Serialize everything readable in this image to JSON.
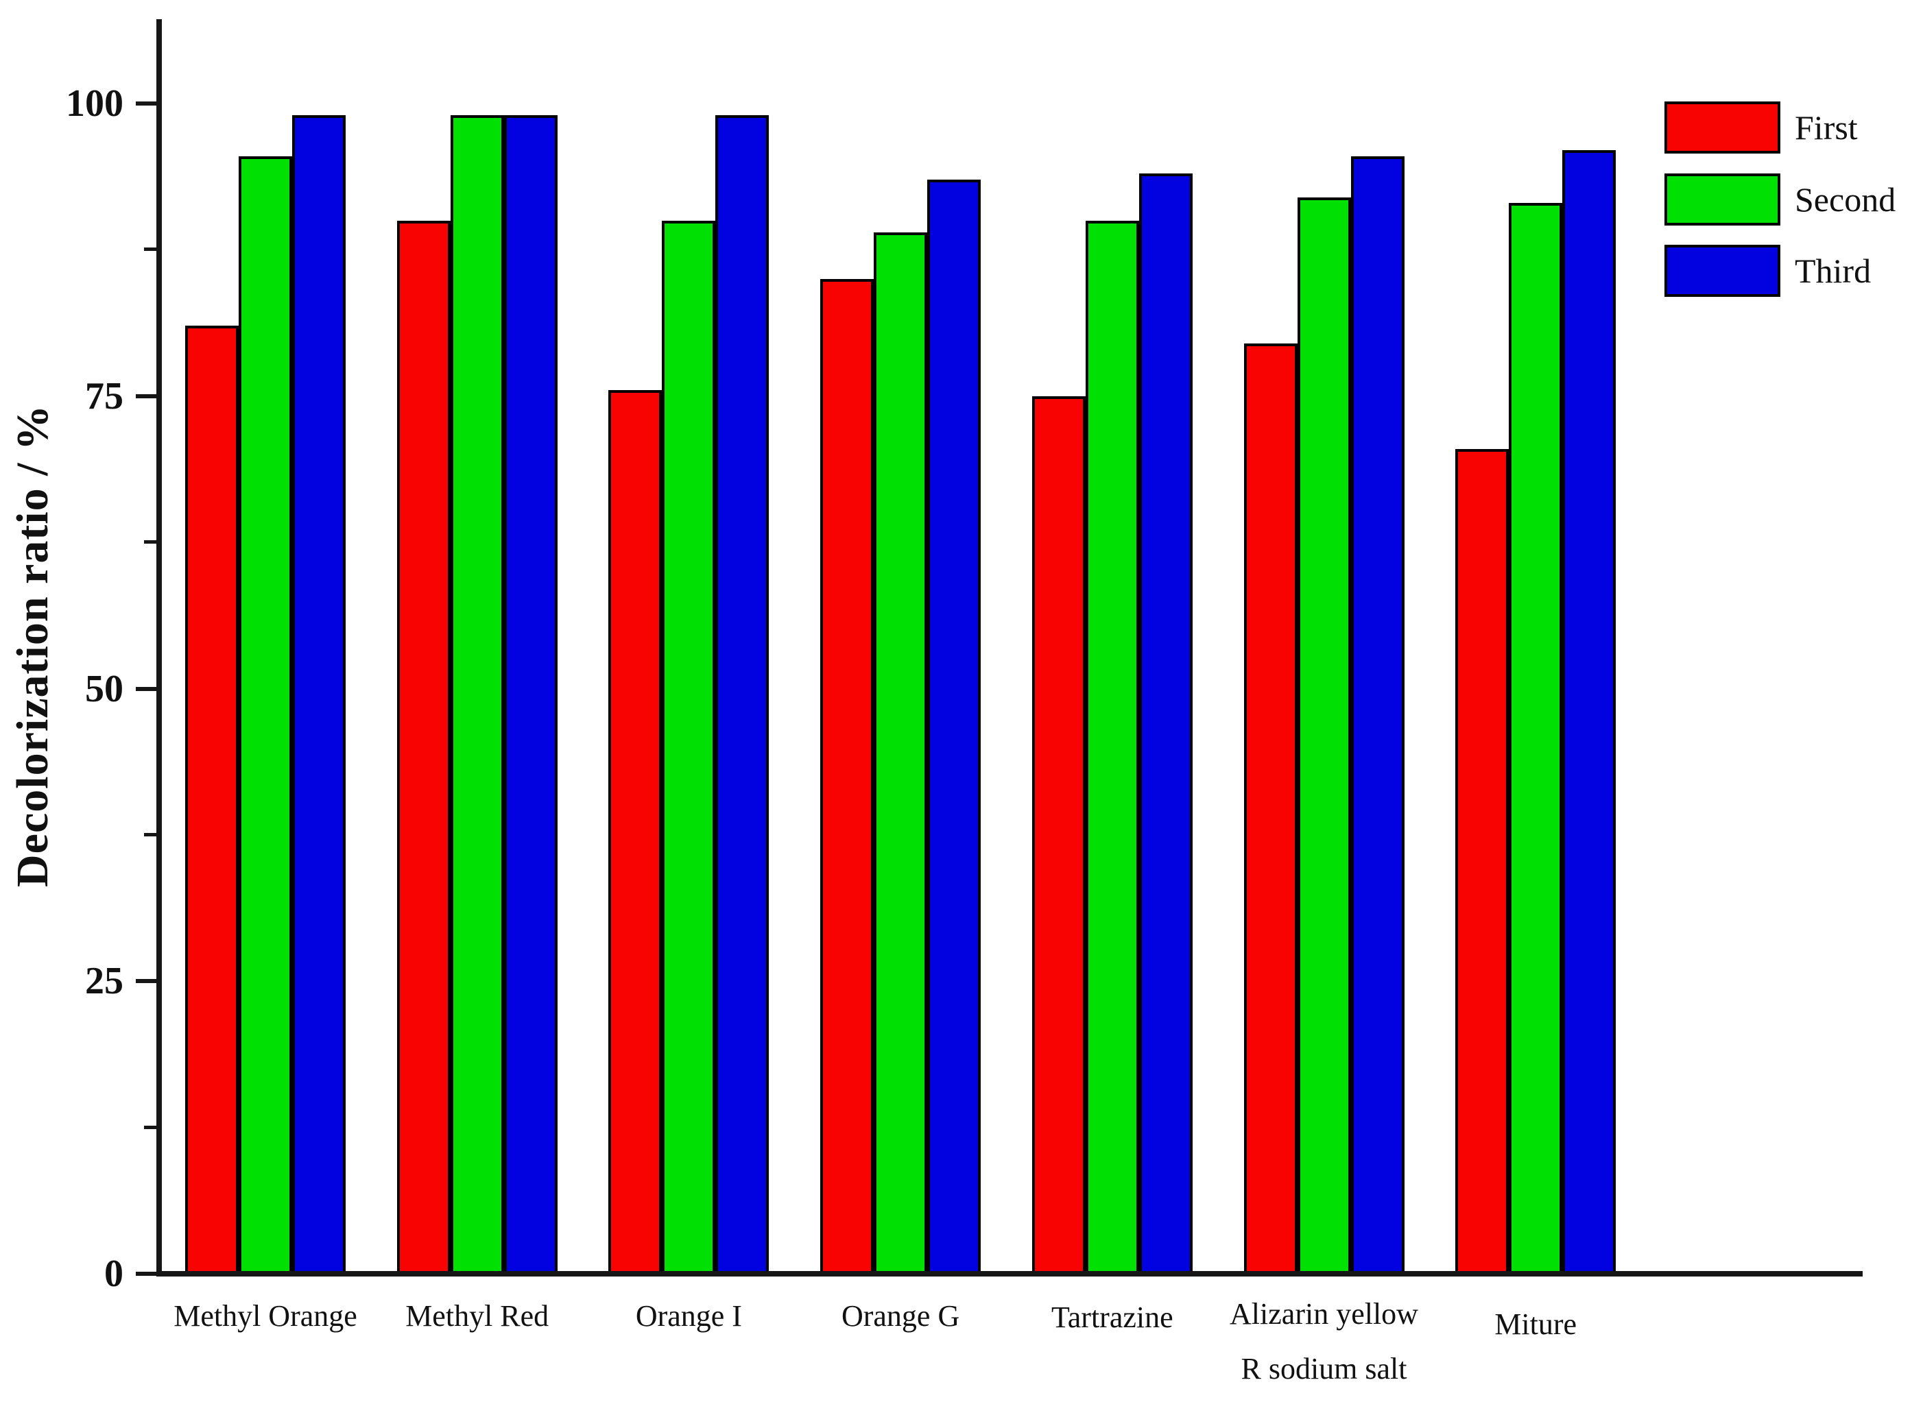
{
  "figure": {
    "background": "#ffffff",
    "axis_color": "#161616",
    "text_color": "#111111"
  },
  "chart_data": {
    "type": "bar",
    "title": "",
    "xlabel": "",
    "ylabel": "Decolorization ratio / %",
    "ylim": [
      0,
      107
    ],
    "yticks_major": [
      0,
      25,
      50,
      75,
      100
    ],
    "yticks_minor": [
      12.5,
      37.5,
      62.5,
      87.5
    ],
    "grid": false,
    "legend_position": "upper-right-outside",
    "bar_outline_color": "#000000",
    "categories": [
      "Methyl Orange",
      "Methyl Red",
      "Orange I",
      "Orange G",
      "Tartrazine",
      "Alizarin yellow\nR sodium salt",
      "Miture"
    ],
    "series": [
      {
        "name": "First",
        "color": "#f80202",
        "values": [
          81,
          90,
          75.5,
          85,
          75,
          79.5,
          70.5
        ]
      },
      {
        "name": "Second",
        "color": "#00e002",
        "values": [
          95.5,
          99,
          90,
          89,
          90,
          92,
          91.5
        ]
      },
      {
        "name": "Third",
        "color": "#0202e0",
        "values": [
          99,
          99,
          99,
          93.5,
          94,
          95.5,
          96
        ]
      }
    ]
  }
}
